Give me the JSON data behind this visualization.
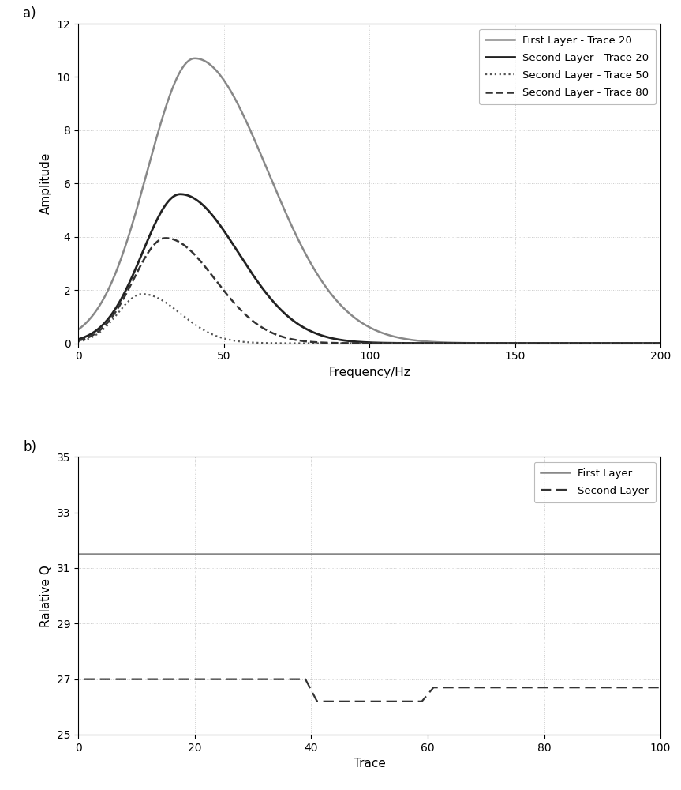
{
  "panel_a": {
    "title_label": "a)",
    "xlabel": "Frequency/Hz",
    "ylabel": "Amplitude",
    "xlim": [
      0,
      200
    ],
    "ylim": [
      0,
      12
    ],
    "yticks": [
      0,
      2,
      4,
      6,
      8,
      10,
      12
    ],
    "xticks": [
      0,
      50,
      100,
      150,
      200
    ],
    "curves": [
      {
        "label": "First Layer - Trace 20",
        "color": "#888888",
        "linestyle": "solid",
        "linewidth": 1.8,
        "peak_amp": 10.7,
        "peak_freq": 40,
        "sigma": 25
      },
      {
        "label": "Second Layer - Trace 20",
        "color": "#222222",
        "linestyle": "solid",
        "linewidth": 2.0,
        "peak_amp": 5.6,
        "peak_freq": 35,
        "sigma": 20
      },
      {
        "label": "Second Layer - Trace 50",
        "color": "#555555",
        "linestyle": "dotted",
        "linewidth": 1.6,
        "peak_amp": 1.85,
        "peak_freq": 22,
        "sigma": 13
      },
      {
        "label": "Second Layer - Trace 80",
        "color": "#333333",
        "linestyle": "dashed",
        "linewidth": 1.8,
        "peak_amp": 3.95,
        "peak_freq": 30,
        "sigma": 17
      }
    ],
    "grid_color": "#cccccc",
    "grid_linestyle": ":"
  },
  "panel_b": {
    "title_label": "b)",
    "xlabel": "Trace",
    "ylabel": "Ralative Q",
    "xlim": [
      0,
      100
    ],
    "ylim": [
      25,
      35
    ],
    "yticks": [
      25,
      27,
      29,
      31,
      33,
      35
    ],
    "xticks": [
      0,
      20,
      40,
      60,
      80,
      100
    ],
    "first_layer_value": 31.5,
    "second_layer_x": [
      1,
      39,
      39,
      41,
      41,
      59,
      59,
      61,
      61,
      100
    ],
    "second_layer_y": [
      27.0,
      27.0,
      27.0,
      26.2,
      26.2,
      26.2,
      26.2,
      26.7,
      26.7,
      26.7
    ],
    "first_layer_color": "#888888",
    "second_layer_color": "#333333",
    "grid_color": "#cccccc",
    "grid_linestyle": ":"
  }
}
